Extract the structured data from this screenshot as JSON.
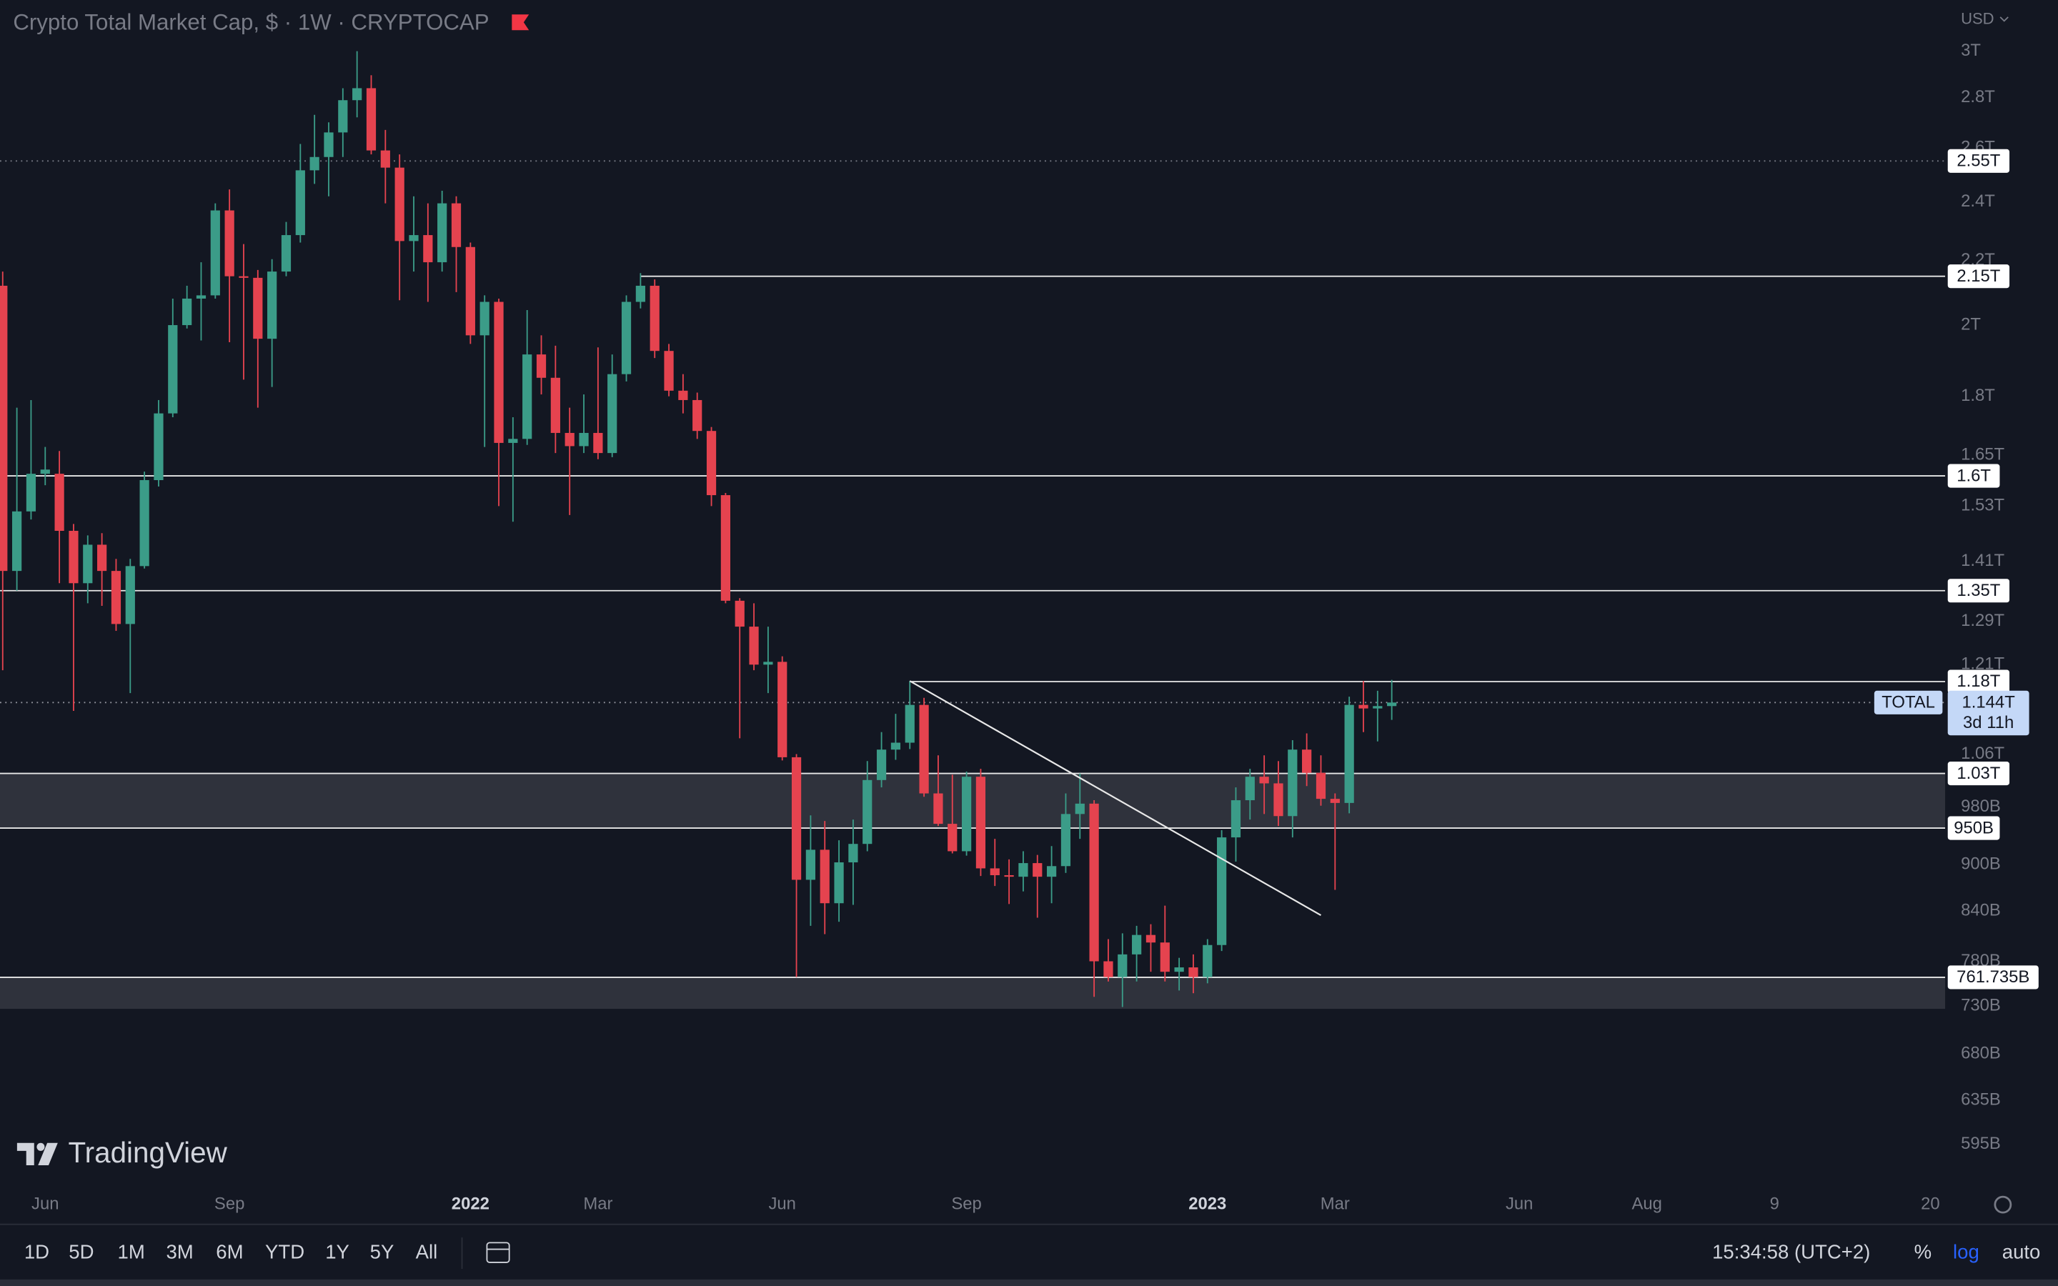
{
  "header": {
    "title": "Crypto Total Market Cap, $ · 1W · CRYPTOCAP",
    "currency": "USD"
  },
  "chart_data": {
    "type": "candlestick",
    "x": [
      0,
      1,
      2,
      3,
      4,
      5,
      6,
      7,
      8,
      9,
      10,
      11,
      12,
      13,
      14,
      15,
      16,
      17,
      18,
      19,
      20,
      21,
      22,
      23,
      24,
      25,
      26,
      27,
      28,
      29,
      30,
      31,
      32,
      33,
      34,
      35,
      36,
      37,
      38,
      39,
      40,
      41,
      42,
      43,
      44,
      45,
      46,
      47,
      48,
      49,
      50,
      51,
      52,
      53,
      54,
      55,
      56,
      57,
      58,
      59,
      60,
      61,
      62,
      63,
      64,
      65,
      66,
      67,
      68,
      69,
      70,
      71,
      72,
      73,
      74,
      75,
      76,
      77,
      78,
      79,
      80,
      81,
      82,
      83,
      84,
      85,
      86,
      87,
      88,
      89,
      90,
      91,
      92,
      93,
      94,
      95,
      96,
      97,
      98
    ],
    "open": [
      2120,
      1390,
      1518,
      1605,
      1605,
      1475,
      1365,
      1445,
      1390,
      1285,
      1400,
      1590,
      1755,
      2000,
      2080,
      2090,
      2370,
      2150,
      2145,
      1960,
      2165,
      2285,
      2515,
      2565,
      2660,
      2790,
      2840,
      2590,
      2525,
      2265,
      2285,
      2195,
      2395,
      2245,
      1970,
      2070,
      1680,
      1690,
      1915,
      1850,
      1705,
      1672,
      1705,
      1655,
      1860,
      2070,
      2120,
      1925,
      1815,
      1790,
      1710,
      1555,
      1330,
      1280,
      1210,
      1215,
      1055,
      880,
      920,
      850,
      903,
      928,
      1020,
      1067,
      1078,
      1140,
      1000,
      956,
      918,
      1025,
      895,
      886,
      884,
      902,
      884,
      898,
      970,
      985,
      780,
      762,
      788,
      811,
      802,
      768,
      773,
      762,
      799,
      937,
      990,
      1025,
      1015,
      967,
      1067,
      1031,
      992,
      986,
      1140,
      1134,
      1138
    ],
    "high": [
      2165,
      1770,
      1790,
      1670,
      1660,
      1490,
      1465,
      1470,
      1415,
      1415,
      1610,
      1790,
      2080,
      2120,
      2195,
      2395,
      2445,
      2255,
      2170,
      2205,
      2330,
      2615,
      2730,
      2700,
      2840,
      3000,
      2895,
      2670,
      2575,
      2420,
      2395,
      2440,
      2420,
      2260,
      2090,
      2080,
      1745,
      2045,
      1970,
      1940,
      1770,
      1805,
      1935,
      1915,
      2090,
      2160,
      2140,
      1945,
      1860,
      1810,
      1720,
      1560,
      1335,
      1325,
      1280,
      1225,
      1060,
      968,
      960,
      933,
      962,
      1049,
      1095,
      1125,
      1181,
      1152,
      1058,
      1028,
      1033,
      1037,
      935,
      907,
      918,
      913,
      925,
      1000,
      1030,
      990,
      806,
      813,
      822,
      824,
      847,
      784,
      788,
      806,
      947,
      1009,
      1037,
      1058,
      1049,
      1082,
      1093,
      1058,
      1000,
      1154,
      1181,
      1164,
      1183
    ],
    "low": [
      1200,
      1350,
      1500,
      1578,
      1365,
      1130,
      1325,
      1320,
      1272,
      1160,
      1395,
      1575,
      1745,
      1990,
      1955,
      2080,
      1950,
      1845,
      1770,
      1825,
      2150,
      2260,
      2465,
      2420,
      2565,
      2720,
      2575,
      2395,
      2075,
      2165,
      2070,
      2165,
      2100,
      1945,
      1670,
      1530,
      1495,
      1675,
      1805,
      1655,
      1510,
      1655,
      1640,
      1645,
      1840,
      2050,
      1905,
      1800,
      1755,
      1690,
      1530,
      1325,
      1085,
      1200,
      1160,
      1050,
      762,
      822,
      812,
      827,
      848,
      918,
      1009,
      1051,
      1068,
      995,
      953,
      915,
      912,
      885,
      872,
      849,
      865,
      832,
      850,
      889,
      935,
      740,
      757,
      729,
      757,
      768,
      757,
      747,
      744,
      755,
      792,
      904,
      962,
      970,
      953,
      937,
      1011,
      982,
      867,
      971,
      1095,
      1080,
      1115
    ],
    "close": [
      1390,
      1518,
      1605,
      1615,
      1475,
      1365,
      1445,
      1390,
      1285,
      1400,
      1590,
      1755,
      2000,
      2080,
      2090,
      2370,
      2150,
      2145,
      1960,
      2165,
      2285,
      2515,
      2565,
      2660,
      2790,
      2840,
      2590,
      2525,
      2265,
      2285,
      2195,
      2395,
      2245,
      1970,
      2070,
      1680,
      1690,
      1915,
      1850,
      1705,
      1672,
      1705,
      1655,
      1860,
      2070,
      2120,
      1925,
      1815,
      1790,
      1710,
      1555,
      1330,
      1280,
      1210,
      1215,
      1055,
      880,
      920,
      850,
      903,
      928,
      1020,
      1067,
      1078,
      1140,
      1000,
      956,
      918,
      1025,
      895,
      886,
      884,
      902,
      884,
      898,
      970,
      985,
      780,
      762,
      788,
      811,
      802,
      768,
      773,
      762,
      799,
      937,
      990,
      1025,
      1015,
      967,
      1067,
      1031,
      992,
      986,
      1140,
      1134,
      1138,
      1144
    ],
    "colors": {
      "up": "#3b9c88",
      "down": "#e5434f"
    },
    "log_scale": true,
    "grid": false,
    "ylim": [
      558,
      3236
    ],
    "yticks": [
      {
        "value": 3000,
        "label": "3T"
      },
      {
        "value": 2800,
        "label": "2.8T"
      },
      {
        "value": 2600,
        "label": "2.6T"
      },
      {
        "value": 2400,
        "label": "2.4T"
      },
      {
        "value": 2200,
        "label": "2.2T"
      },
      {
        "value": 2000,
        "label": "2T"
      },
      {
        "value": 1800,
        "label": "1.8T"
      },
      {
        "value": 1650,
        "label": "1.65T"
      },
      {
        "value": 1530,
        "label": "1.53T"
      },
      {
        "value": 1410,
        "label": "1.41T"
      },
      {
        "value": 1290,
        "label": "1.29T"
      },
      {
        "value": 1210,
        "label": "1.21T"
      },
      {
        "value": 1060,
        "label": "1.06T"
      },
      {
        "value": 980,
        "label": "980B"
      },
      {
        "value": 900,
        "label": "900B"
      },
      {
        "value": 840,
        "label": "840B"
      },
      {
        "value": 780,
        "label": "780B"
      },
      {
        "value": 730,
        "label": "730B"
      },
      {
        "value": 680,
        "label": "680B"
      },
      {
        "value": 635,
        "label": "635B"
      },
      {
        "value": 595,
        "label": "595B"
      }
    ],
    "xlim": [
      -0.19,
      137.04
    ],
    "xticks": [
      {
        "value": 3,
        "label": "Jun"
      },
      {
        "value": 16,
        "label": "Sep"
      },
      {
        "value": 33,
        "label": "2022",
        "bold": true
      },
      {
        "value": 42,
        "label": "Mar"
      },
      {
        "value": 55,
        "label": "Jun"
      },
      {
        "value": 68,
        "label": "Sep"
      },
      {
        "value": 85,
        "label": "2023",
        "bold": true
      },
      {
        "value": 94,
        "label": "Mar"
      },
      {
        "value": 107,
        "label": "Jun"
      },
      {
        "value": 116,
        "label": "Aug"
      },
      {
        "value": 125,
        "label": "9"
      },
      {
        "value": 136,
        "label": "20"
      }
    ],
    "zones": [
      [
        950,
        1030
      ],
      [
        727,
        761.735
      ]
    ],
    "levels": [
      {
        "value": 2550,
        "label": "2.55T",
        "style": "dotted"
      },
      {
        "value": 2150,
        "label": "2.15T",
        "style": "solid",
        "start_x": 45
      },
      {
        "value": 1600,
        "label": "1.6T",
        "style": "solid"
      },
      {
        "value": 1350,
        "label": "1.35T",
        "style": "solid"
      },
      {
        "value": 1180,
        "label": "1.18T",
        "style": "solid",
        "start_x": 64
      },
      {
        "value": 1030,
        "label": "1.03T",
        "style": "solid"
      },
      {
        "value": 950,
        "label": "950B",
        "style": "solid"
      },
      {
        "value": 761.735,
        "label": "761.735B",
        "style": "solid"
      }
    ],
    "trendline": {
      "x": [
        64,
        93
      ],
      "values": [
        1181,
        835
      ]
    },
    "last_price": {
      "symbol": "TOTAL",
      "value": 1144,
      "label": "1.144T",
      "countdown": "3d 11h"
    }
  },
  "toolbar": {
    "ranges": [
      "1D",
      "5D",
      "1M",
      "3M",
      "6M",
      "YTD",
      "1Y",
      "5Y",
      "All"
    ],
    "clock": "15:34:58 (UTC+2)",
    "percent": "%",
    "log": "log",
    "auto": "auto"
  },
  "branding": "TradingView"
}
